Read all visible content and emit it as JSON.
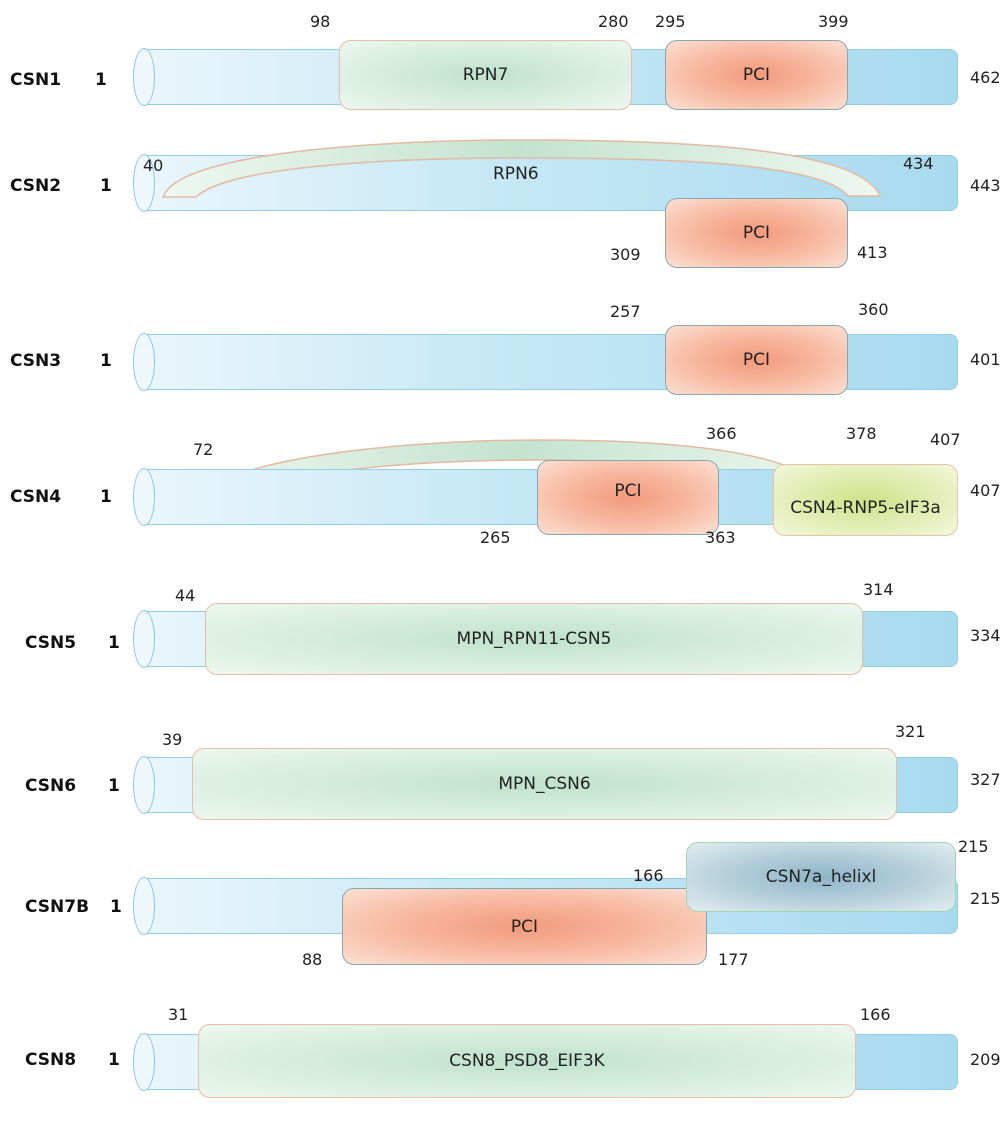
{
  "proteins": [
    {
      "name": "CSN1",
      "start": "1",
      "end": "462",
      "domains": [
        {
          "label": "RPN7",
          "from": "98",
          "to": "280"
        },
        {
          "label": "PCI",
          "from": "295",
          "to": "399"
        }
      ]
    },
    {
      "name": "CSN2",
      "start": "1",
      "end": "443",
      "domains": [
        {
          "label": "RPN6",
          "from": "40",
          "to": "434"
        },
        {
          "label": "PCI",
          "from": "309",
          "to": "413"
        }
      ]
    },
    {
      "name": "CSN3",
      "start": "1",
      "end": "401",
      "domains": [
        {
          "label": "PCI",
          "from": "257",
          "to": "360"
        }
      ]
    },
    {
      "name": "CSN4",
      "start": "1",
      "end": "407",
      "domains": [
        {
          "label": "PCI",
          "from": "265",
          "to": "363"
        },
        {
          "label": "CSN4-RNP5-eIF3a",
          "from": "378",
          "to": "407"
        },
        {
          "label": "",
          "from": "72",
          "to": "366"
        }
      ]
    },
    {
      "name": "CSN5",
      "start": "1",
      "end": "334",
      "domains": [
        {
          "label": "MPN_RPN11-CSN5",
          "from": "44",
          "to": "314"
        }
      ]
    },
    {
      "name": "CSN6",
      "start": "1",
      "end": "327",
      "domains": [
        {
          "label": "MPN_CSN6",
          "from": "39",
          "to": "321"
        }
      ]
    },
    {
      "name": "CSN7B",
      "start": "1",
      "end": "215",
      "domains": [
        {
          "label": "CSN7a_helixl",
          "from": "166",
          "to": "215"
        },
        {
          "label": "PCI",
          "from": "88",
          "to": "177"
        }
      ]
    },
    {
      "name": "CSN8",
      "start": "1",
      "end": "209",
      "domains": [
        {
          "label": "CSN8_PSD8_EIF3K",
          "from": "31",
          "to": "166"
        }
      ]
    }
  ]
}
